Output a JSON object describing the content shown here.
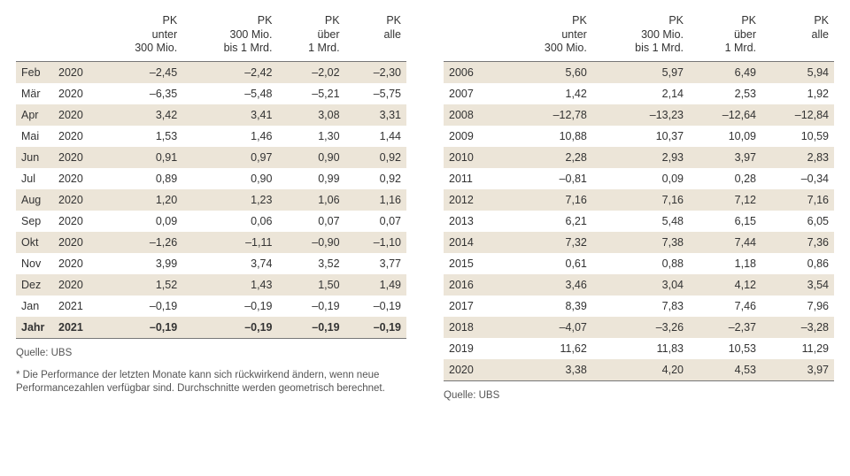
{
  "colors": {
    "stripe_bg": "#ece5d8",
    "rule": "#777777",
    "text": "#333333",
    "muted": "#555555",
    "background": "#ffffff"
  },
  "typography": {
    "base_fontsize_pt": 9.5,
    "small_fontsize_pt": 8.5,
    "font_family": "Arial"
  },
  "headers": {
    "col1": "PK\nunter\n300 Mio.",
    "col2": "PK\n300 Mio.\nbis 1 Mrd.",
    "col3": "PK\nüber\n1 Mrd.",
    "col4": "PK\nalle"
  },
  "left": {
    "type": "table",
    "columns": [
      "month",
      "year",
      "pk_u300",
      "pk_300_1b",
      "pk_o1b",
      "pk_alle"
    ],
    "alignment": [
      "left",
      "left",
      "right",
      "right",
      "right",
      "right"
    ],
    "rows": [
      {
        "m": "Feb",
        "y": "2020",
        "a": "–2,45",
        "b": "–2,42",
        "c": "–2,02",
        "d": "–2,30"
      },
      {
        "m": "Mär",
        "y": "2020",
        "a": "–6,35",
        "b": "–5,48",
        "c": "–5,21",
        "d": "–5,75"
      },
      {
        "m": "Apr",
        "y": "2020",
        "a": "3,42",
        "b": "3,41",
        "c": "3,08",
        "d": "3,31"
      },
      {
        "m": "Mai",
        "y": "2020",
        "a": "1,53",
        "b": "1,46",
        "c": "1,30",
        "d": "1,44"
      },
      {
        "m": "Jun",
        "y": "2020",
        "a": "0,91",
        "b": "0,97",
        "c": "0,90",
        "d": "0,92"
      },
      {
        "m": "Jul",
        "y": "2020",
        "a": "0,89",
        "b": "0,90",
        "c": "0,99",
        "d": "0,92"
      },
      {
        "m": "Aug",
        "y": "2020",
        "a": "1,20",
        "b": "1,23",
        "c": "1,06",
        "d": "1,16"
      },
      {
        "m": "Sep",
        "y": "2020",
        "a": "0,09",
        "b": "0,06",
        "c": "0,07",
        "d": "0,07"
      },
      {
        "m": "Okt",
        "y": "2020",
        "a": "–1,26",
        "b": "–1,11",
        "c": "–0,90",
        "d": "–1,10"
      },
      {
        "m": "Nov",
        "y": "2020",
        "a": "3,99",
        "b": "3,74",
        "c": "3,52",
        "d": "3,77"
      },
      {
        "m": "Dez",
        "y": "2020",
        "a": "1,52",
        "b": "1,43",
        "c": "1,50",
        "d": "1,49"
      },
      {
        "m": "Jan",
        "y": "2021",
        "a": "–0,19",
        "b": "–0,19",
        "c": "–0,19",
        "d": "–0,19"
      }
    ],
    "total": {
      "m": "Jahr",
      "y": "2021",
      "a": "–0,19",
      "b": "–0,19",
      "c": "–0,19",
      "d": "–0,19"
    },
    "source": "Quelle: UBS",
    "footnote": "* Die Performance der letzten Monate kann sich rückwirkend ändern, wenn neue Performancezahlen verfügbar sind. Durchschnitte werden geometrisch berechnet."
  },
  "right": {
    "type": "table",
    "columns": [
      "year",
      "pk_u300",
      "pk_300_1b",
      "pk_o1b",
      "pk_alle"
    ],
    "alignment": [
      "left",
      "right",
      "right",
      "right",
      "right"
    ],
    "rows": [
      {
        "y": "2006",
        "a": "5,60",
        "b": "5,97",
        "c": "6,49",
        "d": "5,94"
      },
      {
        "y": "2007",
        "a": "1,42",
        "b": "2,14",
        "c": "2,53",
        "d": "1,92"
      },
      {
        "y": "2008",
        "a": "–12,78",
        "b": "–13,23",
        "c": "–12,64",
        "d": "–12,84"
      },
      {
        "y": "2009",
        "a": "10,88",
        "b": "10,37",
        "c": "10,09",
        "d": "10,59"
      },
      {
        "y": "2010",
        "a": "2,28",
        "b": "2,93",
        "c": "3,97",
        "d": "2,83"
      },
      {
        "y": "2011",
        "a": "–0,81",
        "b": "0,09",
        "c": "0,28",
        "d": "–0,34"
      },
      {
        "y": "2012",
        "a": "7,16",
        "b": "7,16",
        "c": "7,12",
        "d": "7,16"
      },
      {
        "y": "2013",
        "a": "6,21",
        "b": "5,48",
        "c": "6,15",
        "d": "6,05"
      },
      {
        "y": "2014",
        "a": "7,32",
        "b": "7,38",
        "c": "7,44",
        "d": "7,36"
      },
      {
        "y": "2015",
        "a": "0,61",
        "b": "0,88",
        "c": "1,18",
        "d": "0,86"
      },
      {
        "y": "2016",
        "a": "3,46",
        "b": "3,04",
        "c": "4,12",
        "d": "3,54"
      },
      {
        "y": "2017",
        "a": "8,39",
        "b": "7,83",
        "c": "7,46",
        "d": "7,96"
      },
      {
        "y": "2018",
        "a": "–4,07",
        "b": "–3,26",
        "c": "–2,37",
        "d": "–3,28"
      },
      {
        "y": "2019",
        "a": "11,62",
        "b": "11,83",
        "c": "10,53",
        "d": "11,29"
      },
      {
        "y": "2020",
        "a": "3,38",
        "b": "4,20",
        "c": "4,53",
        "d": "3,97"
      }
    ],
    "source": "Quelle: UBS"
  }
}
